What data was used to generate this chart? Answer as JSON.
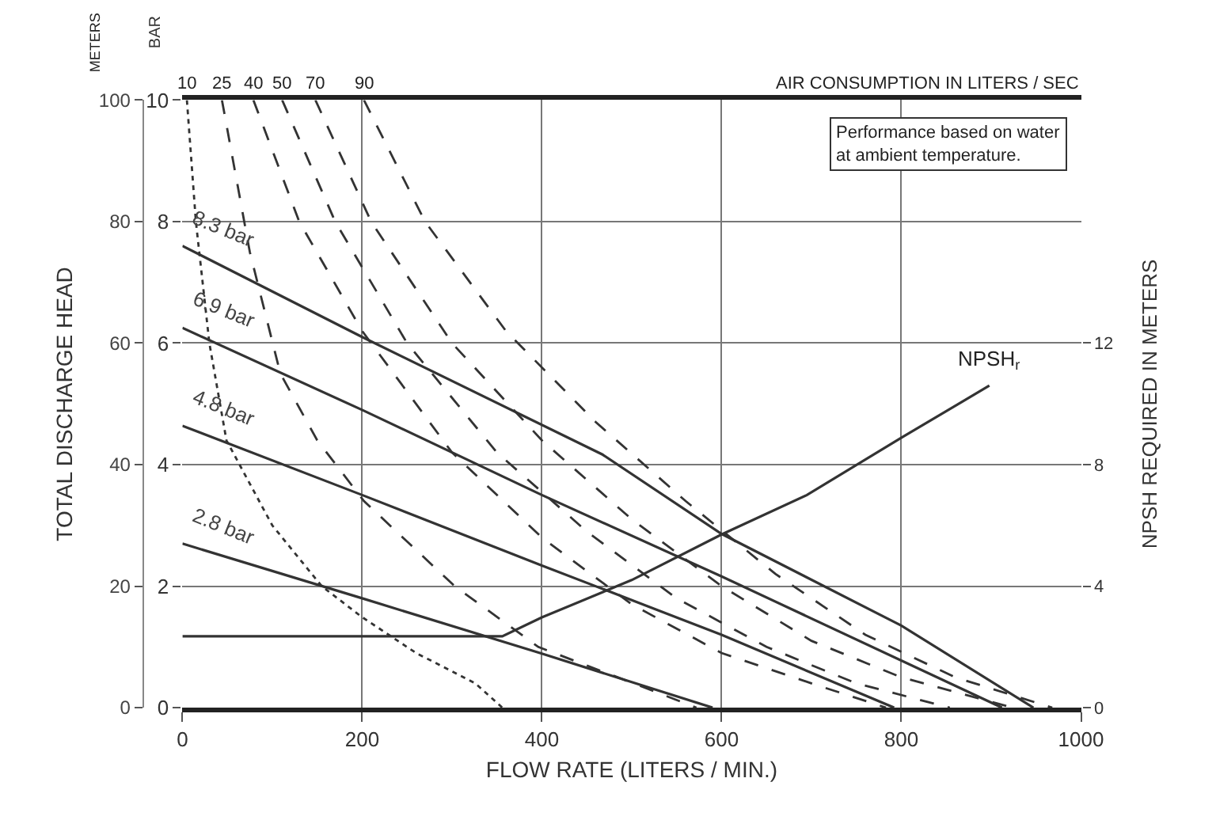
{
  "chart_data": {
    "type": "line",
    "xlabel": "FLOW RATE (LITERS / MIN.)",
    "ylabel": "TOTAL DISCHARGE HEAD",
    "y2label": "NPSH REQUIRED IN METERS",
    "y3label": "BAR",
    "x2label": "AIR CONSUMPTION IN LITERS / SEC",
    "annotations": [
      "Performance based on water at ambient temperature.",
      "METERS"
    ],
    "xlim": [
      0,
      1000
    ],
    "xticks": [
      0,
      200,
      400,
      600,
      800,
      1000
    ],
    "ylim": [
      0,
      100
    ],
    "yticks": [
      0,
      20,
      40,
      60,
      80,
      100
    ],
    "y3lim": [
      0,
      10
    ],
    "y3ticks": [
      0,
      2,
      4,
      6,
      8,
      10
    ],
    "y2lim": [
      0,
      20
    ],
    "y2ticks": [
      0,
      4,
      8,
      12
    ],
    "grid": true,
    "legend": false,
    "marker": "none",
    "series": [
      {
        "name": "8.3 bar",
        "color": "#333333",
        "line_style": "solid",
        "x": [
          0,
          200,
          467,
          600,
          800,
          947
        ],
        "values": [
          76,
          61,
          41.7,
          28.6,
          13.5,
          0
        ]
      },
      {
        "name": "6.9 bar",
        "color": "#333333",
        "line_style": "solid",
        "x": [
          0,
          200,
          400,
          600,
          912
        ],
        "values": [
          62.5,
          49,
          35,
          21.6,
          0
        ]
      },
      {
        "name": "4.8 bar",
        "color": "#333333",
        "line_style": "solid",
        "x": [
          0,
          200,
          400,
          600,
          792
        ],
        "values": [
          46.4,
          35,
          23.4,
          12,
          0
        ]
      },
      {
        "name": "2.8 bar",
        "color": "#333333",
        "line_style": "solid",
        "x": [
          0,
          200,
          400,
          590
        ],
        "values": [
          27,
          18,
          8.9,
          0
        ]
      },
      {
        "name": "10",
        "color": "#333333",
        "line_style": "dotted",
        "x": [
          5,
          15,
          30,
          49,
          100,
          155,
          199,
          260,
          326,
          356
        ],
        "values": [
          100,
          80,
          60,
          44,
          30,
          20,
          15,
          9,
          4,
          0
        ]
      },
      {
        "name": "25",
        "color": "#333333",
        "line_style": "dashed",
        "x": [
          44,
          75,
          109,
          150,
          202,
          303,
          396,
          502,
          572
        ],
        "values": [
          100,
          75,
          55,
          44,
          34,
          20,
          10,
          4,
          0
        ]
      },
      {
        "name": "40",
        "color": "#333333",
        "line_style": "dashed",
        "x": [
          79,
          130,
          200,
          300,
          400,
          500,
          600,
          700,
          783
        ],
        "values": [
          100,
          80,
          62,
          42,
          28,
          17,
          9,
          4,
          0
        ]
      },
      {
        "name": "50",
        "color": "#333333",
        "line_style": "dashed",
        "x": [
          111,
          170,
          250,
          350,
          450,
          550,
          650,
          750,
          854
        ],
        "values": [
          100,
          80,
          60,
          42,
          29,
          18,
          10,
          4,
          0
        ]
      },
      {
        "name": "70",
        "color": "#333333",
        "line_style": "dashed",
        "x": [
          148,
          210,
          300,
          400,
          500,
          600,
          700,
          800,
          924
        ],
        "values": [
          100,
          80,
          60,
          44,
          31,
          20,
          11,
          5,
          0
        ]
      },
      {
        "name": "90",
        "color": "#333333",
        "line_style": "dashed",
        "x": [
          202,
          270,
          360,
          460,
          560,
          660,
          760,
          860,
          968
        ],
        "values": [
          100,
          80,
          62,
          47,
          34,
          22,
          12,
          5,
          0
        ]
      },
      {
        "name": "NPSH$_{r}$",
        "color": "#333333",
        "line_style": "solid",
        "axis": "y2",
        "x": [
          0,
          356,
          400,
          500,
          600,
          695,
          801,
          898
        ],
        "values": [
          2.35,
          2.35,
          2.97,
          4.2,
          5.7,
          7.0,
          8.9,
          10.6
        ]
      }
    ]
  }
}
